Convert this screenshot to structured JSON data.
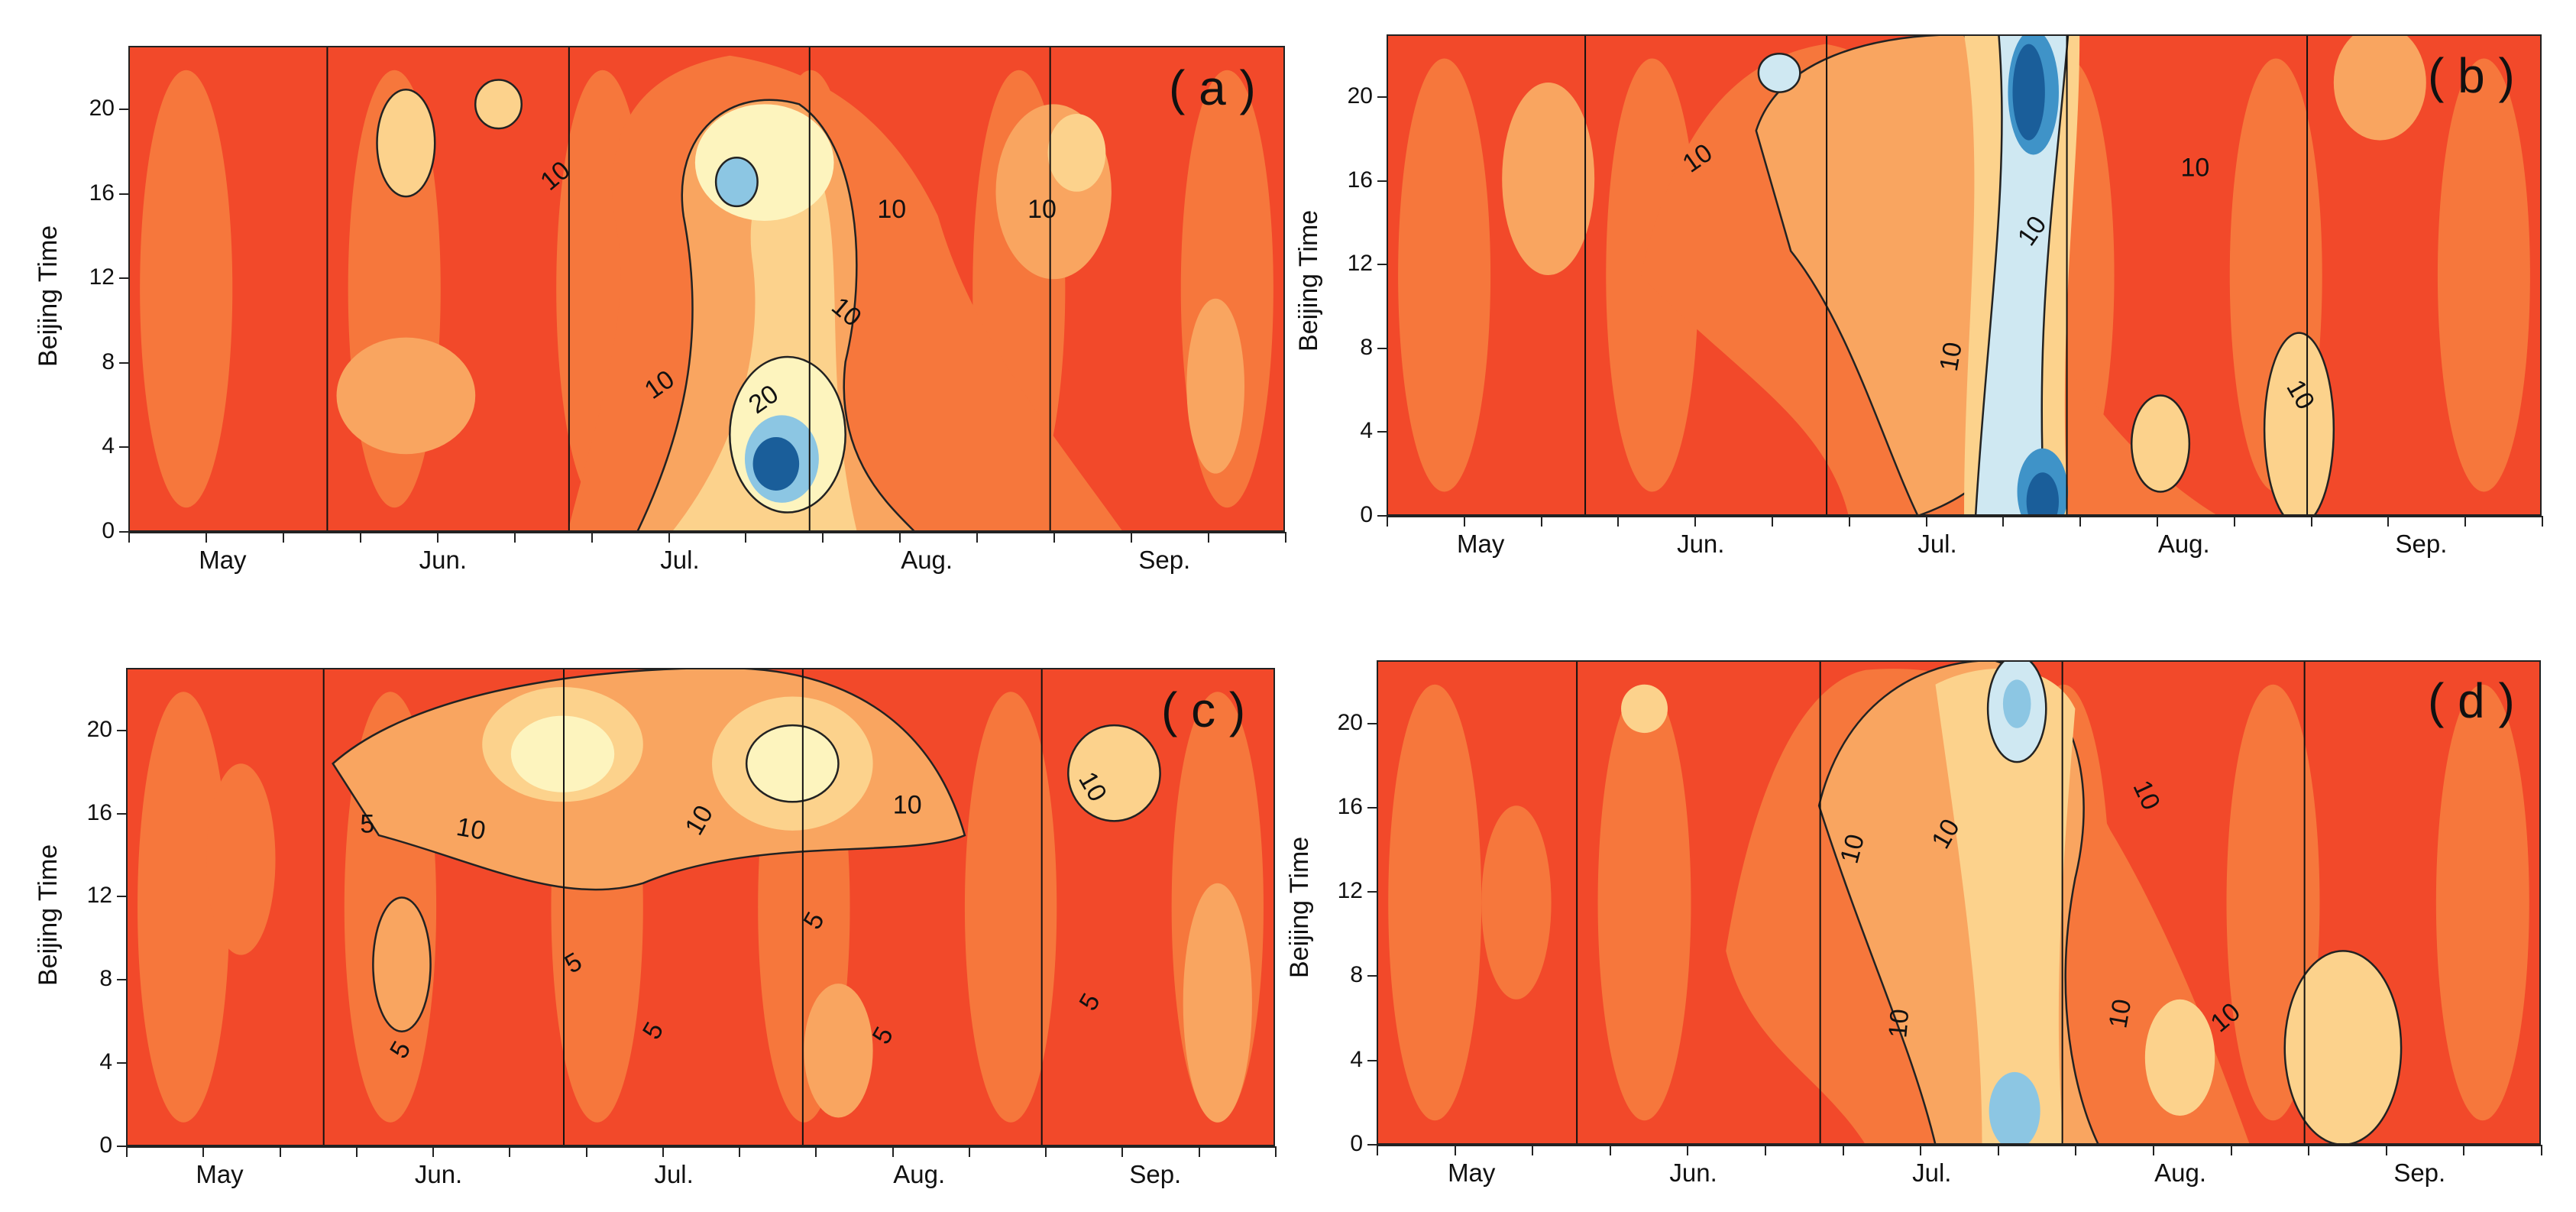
{
  "chart_data": [
    {
      "type": "contour",
      "panel_label": "( a )",
      "ylabel": "Beijing Time",
      "yticks": [
        "0",
        "4",
        "8",
        "12",
        "16",
        "20"
      ],
      "xtick_labels": [
        "May",
        "Jun.",
        "Jul.",
        "Aug.",
        "Sep."
      ],
      "ylim": [
        0,
        23
      ],
      "contour_labels": [
        "10",
        "10",
        "10",
        "10",
        "10",
        "20"
      ],
      "low_value_centers": [
        {
          "month": "Jul.",
          "day": 26,
          "hour": 3,
          "level": "20+"
        },
        {
          "month": "Jul.",
          "day": 22,
          "hour": 16,
          "level": "15"
        }
      ]
    },
    {
      "type": "contour",
      "panel_label": "( b )",
      "ylabel": "Beijing Time",
      "yticks": [
        "0",
        "4",
        "8",
        "12",
        "16",
        "20"
      ],
      "xtick_labels": [
        "May",
        "Jun.",
        "Jul.",
        "Aug.",
        "Sep."
      ],
      "ylim": [
        0,
        23
      ],
      "contour_labels": [
        "10",
        "10",
        "10",
        "10",
        "10"
      ],
      "low_value_centers": [
        {
          "month": "Jul.",
          "day": 30,
          "hour": 21,
          "level": "20+"
        },
        {
          "month": "Jul.",
          "day": 31,
          "hour": 1,
          "level": "20+"
        }
      ]
    },
    {
      "type": "contour",
      "panel_label": "( c )",
      "ylabel": "Beijing Time",
      "yticks": [
        "0",
        "4",
        "8",
        "12",
        "16",
        "20"
      ],
      "xtick_labels": [
        "May",
        "Jun.",
        "Jul.",
        "Aug.",
        "Sep."
      ],
      "ylim": [
        0,
        23
      ],
      "contour_labels": [
        "10",
        "10",
        "10",
        "10",
        "5",
        "5",
        "5",
        "5",
        "5",
        "5",
        "5"
      ],
      "low_value_centers": [
        {
          "month": "Jul.",
          "day": 31,
          "hour": 19,
          "level": "10+"
        }
      ]
    },
    {
      "type": "contour",
      "panel_label": "( d )",
      "ylabel": "Beijing Time",
      "yticks": [
        "0",
        "4",
        "8",
        "12",
        "16",
        "20"
      ],
      "xtick_labels": [
        "May",
        "Jun.",
        "Jul.",
        "Aug.",
        "Sep."
      ],
      "ylim": [
        0,
        23
      ],
      "contour_labels": [
        "10",
        "10",
        "10",
        "10",
        "10",
        "10"
      ],
      "low_value_centers": [
        {
          "month": "Aug.",
          "day": 1,
          "hour": 1,
          "level": "15+"
        },
        {
          "month": "Jul.",
          "day": 31,
          "hour": 21,
          "level": "15"
        }
      ]
    }
  ],
  "colors": {
    "base_red": "#f2492a",
    "orange": "#f6773c",
    "light_orange": "#f9a560",
    "tan": "#fcd28c",
    "pale_yellow": "#fdf4be",
    "pale_blue": "#cfe8f2",
    "light_blue": "#8cc6e3",
    "mid_blue": "#3f93c8",
    "dark_blue": "#1a5e9a",
    "contour_line": "#222222"
  }
}
